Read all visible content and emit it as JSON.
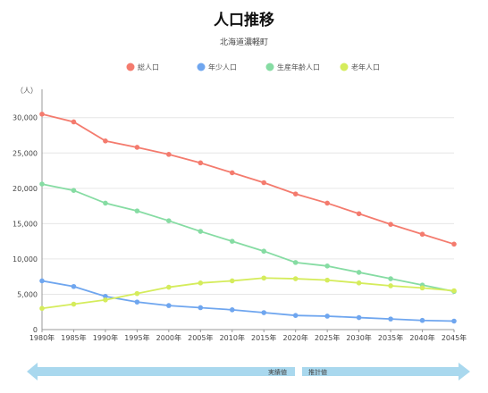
{
  "chart_data": {
    "type": "line",
    "title": "人口推移",
    "subtitle": "北海道濃軽町",
    "ylabel": "（人）",
    "ylim": [
      0,
      33000
    ],
    "yticks": [
      0,
      5000,
      10000,
      15000,
      20000,
      25000,
      30000
    ],
    "ytick_labels": [
      "0",
      "5,000",
      "10,000",
      "15,000",
      "20,000",
      "25,000",
      "30,000"
    ],
    "categories": [
      "1980年",
      "1985年",
      "1990年",
      "1995年",
      "2000年",
      "2005年",
      "2010年",
      "2015年",
      "2020年",
      "2025年",
      "2030年",
      "2035年",
      "2040年",
      "2045年"
    ],
    "grid": true,
    "legend_position": "top-center",
    "series": [
      {
        "name": "総人口",
        "color": "#f47b6e",
        "values": [
          30500,
          29400,
          26700,
          25800,
          24800,
          23600,
          22200,
          20800,
          19200,
          17900,
          16400,
          14900,
          13500,
          12100
        ]
      },
      {
        "name": "年少人口",
        "color": "#6fa6ef",
        "values": [
          6900,
          6100,
          4700,
          3900,
          3400,
          3100,
          2800,
          2400,
          2000,
          1900,
          1700,
          1500,
          1300,
          1200
        ]
      },
      {
        "name": "生産年齢人口",
        "color": "#86dca3",
        "values": [
          20600,
          19700,
          17900,
          16800,
          15400,
          13900,
          12500,
          11100,
          9500,
          9000,
          8100,
          7200,
          6300,
          5400
        ]
      },
      {
        "name": "老年人口",
        "color": "#d5ec5c",
        "values": [
          3000,
          3600,
          4200,
          5100,
          6000,
          6600,
          6900,
          7300,
          7200,
          7000,
          6600,
          6200,
          5900,
          5500
        ]
      }
    ],
    "period_labels": {
      "actual": "実績値",
      "projected": "推計値"
    },
    "arrow_color": "#a9d8ee"
  }
}
